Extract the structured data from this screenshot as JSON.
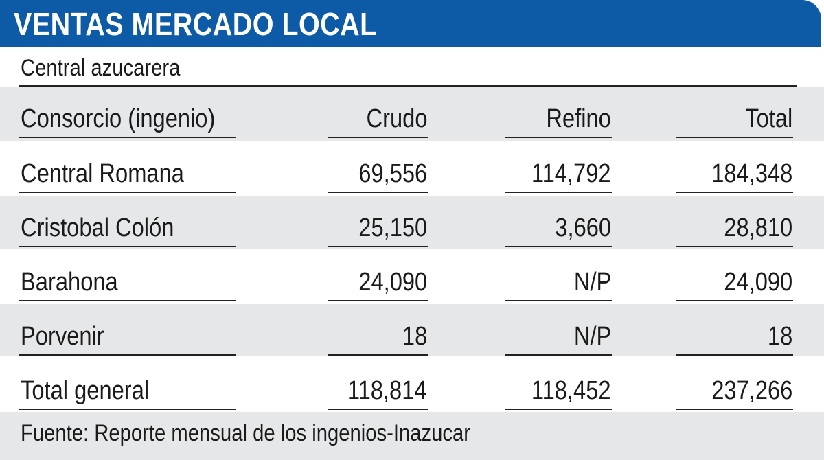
{
  "title": "VENTAS MERCADO LOCAL",
  "subtitle": "Central azucarera",
  "source": "Fuente: Reporte mensual de los ingenios-Inazucar",
  "colors": {
    "title_bar": "#0d5aa7",
    "band": "#e6e7e9",
    "text": "#1a1a1a"
  },
  "chart_data": {
    "type": "table",
    "title": "VENTAS MERCADO LOCAL",
    "columns": [
      "Consorcio (ingenio)",
      "Crudo",
      "Refino",
      "Total"
    ],
    "rows": [
      [
        "Central Romana",
        "69,556",
        "114,792",
        "184,348"
      ],
      [
        "Cristobal Colón",
        "25,150",
        "3,660",
        "28,810"
      ],
      [
        "Barahona",
        "24,090",
        "N/P",
        "24,090"
      ],
      [
        "Porvenir",
        "18",
        "N/P",
        "18"
      ],
      [
        "Total general",
        "118,814",
        "118,452",
        "237,266"
      ]
    ]
  }
}
